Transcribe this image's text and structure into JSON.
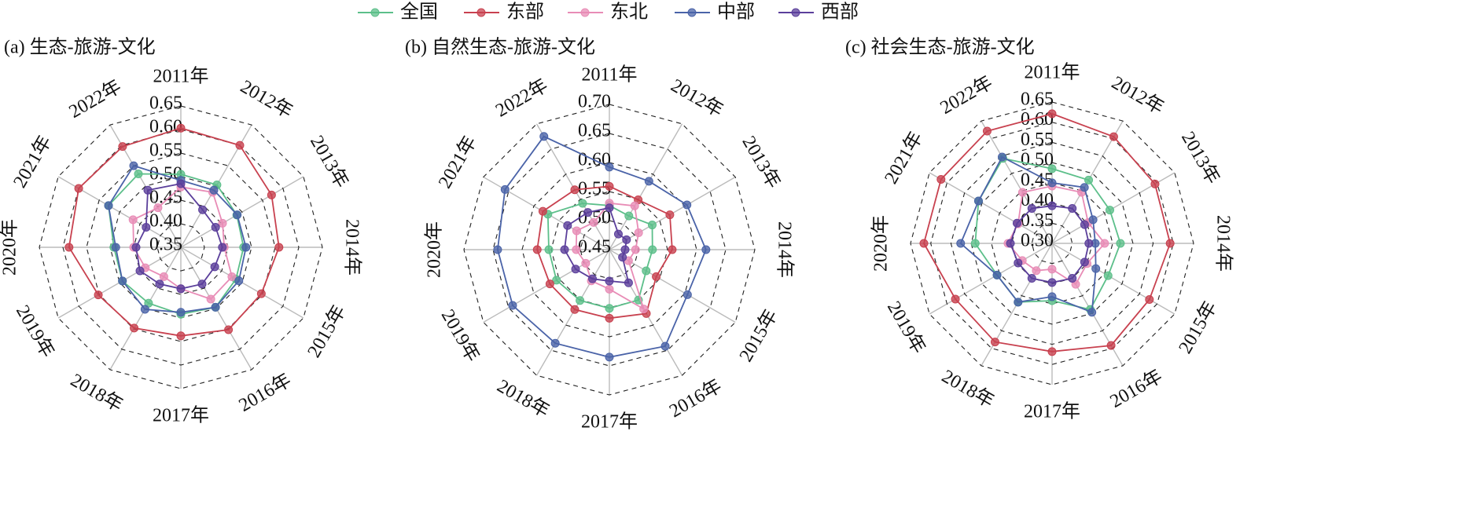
{
  "chart_data": [
    {
      "type": "radar",
      "title": "(a) 生态-旅游-文化",
      "categories": [
        "2011年",
        "2012年",
        "2013年",
        "2014年",
        "2015年",
        "2016年",
        "2017年",
        "2018年",
        "2019年",
        "2020年",
        "2021年",
        "2022年"
      ],
      "ylim": [
        0.35,
        0.65
      ],
      "yticks": [
        0.35,
        {
          "value": 0.4,
          "label": "0.40"
        },
        0.45,
        {
          "value": 0.5,
          "label": "0.50"
        },
        0.55,
        {
          "value": 0.6,
          "label": "0.60"
        },
        0.65
      ],
      "series": [
        {
          "name": "全国",
          "color": "#5cbf8a",
          "values": [
            0.505,
            0.503,
            0.487,
            0.483,
            0.485,
            0.497,
            0.492,
            0.487,
            0.493,
            0.492,
            0.527,
            0.53
          ]
        },
        {
          "name": "东部",
          "color": "#c8414f",
          "values": [
            0.603,
            0.6,
            0.572,
            0.558,
            0.547,
            0.552,
            0.538,
            0.548,
            0.552,
            0.587,
            0.6,
            0.597
          ]
        },
        {
          "name": "东北",
          "color": "#e88cb6",
          "values": [
            0.478,
            0.485,
            0.452,
            0.442,
            0.475,
            0.477,
            0.438,
            0.422,
            0.437,
            0.45,
            0.467,
            0.447
          ]
        },
        {
          "name": "中部",
          "color": "#4a63a8",
          "values": [
            0.492,
            0.49,
            0.488,
            0.488,
            0.492,
            0.497,
            0.488,
            0.502,
            0.493,
            0.488,
            0.527,
            0.55
          ]
        },
        {
          "name": "西部",
          "color": "#5b3f9b",
          "values": [
            0.485,
            0.442,
            0.435,
            0.438,
            0.433,
            0.44,
            0.438,
            0.44,
            0.45,
            0.445,
            0.435,
            0.49
          ]
        }
      ]
    },
    {
      "type": "radar",
      "title": "(b) 自然生态-旅游-文化",
      "categories": [
        "2011年",
        "2012年",
        "2013年",
        "2014年",
        "2015年",
        "2016年",
        "2017年",
        "2018年",
        "2019年",
        "2020年",
        "2021年",
        "2022年"
      ],
      "ylim": [
        0.45,
        0.7
      ],
      "yticks": [
        0.45,
        {
          "value": 0.5,
          "label": "0.50"
        },
        0.55,
        {
          "value": 0.6,
          "label": "0.60"
        },
        0.65,
        {
          "value": 0.7,
          "label": "0.70"
        }
      ],
      "series": [
        {
          "name": "全国",
          "color": "#5cbf8a",
          "values": [
            0.526,
            0.517,
            0.535,
            0.524,
            0.523,
            0.55,
            0.551,
            0.551,
            0.555,
            0.554,
            0.572,
            0.542
          ]
        },
        {
          "name": "东部",
          "color": "#c8414f",
          "values": [
            0.559,
            0.549,
            0.57,
            0.558,
            0.543,
            0.577,
            0.568,
            0.569,
            0.568,
            0.574,
            0.582,
            0.569
          ]
        },
        {
          "name": "东北",
          "color": "#e88cb6",
          "values": [
            0.53,
            0.537,
            0.508,
            0.495,
            0.488,
            0.568,
            0.518,
            0.512,
            0.497,
            0.507,
            0.515,
            0.504
          ]
        },
        {
          "name": "中部",
          "color": "#4a63a8",
          "values": [
            0.592,
            0.586,
            0.604,
            0.616,
            0.605,
            0.642,
            0.635,
            0.636,
            0.642,
            0.642,
            0.657,
            0.675
          ]
        },
        {
          "name": "西部",
          "color": "#5b3f9b",
          "values": [
            0.522,
            0.481,
            0.484,
            0.477,
            0.476,
            0.516,
            0.504,
            0.508,
            0.517,
            0.527,
            0.533,
            0.524
          ]
        }
      ]
    },
    {
      "type": "radar",
      "title": "(c) 社会生态-旅游-文化",
      "categories": [
        "2011年",
        "2012年",
        "2013年",
        "2014年",
        "2015年",
        "2016年",
        "2017年",
        "2018年",
        "2019年",
        "2020年",
        "2021年",
        "2022年"
      ],
      "ylim": [
        0.3,
        0.65
      ],
      "yticks": [
        {
          "value": 0.3,
          "label": "0.30"
        },
        0.35,
        {
          "value": 0.4,
          "label": "0.40"
        },
        0.45,
        {
          "value": 0.5,
          "label": "0.50"
        },
        0.55,
        {
          "value": 0.6,
          "label": "0.60"
        },
        0.65
      ],
      "series": [
        {
          "name": "全国",
          "color": "#5cbf8a",
          "values": [
            0.485,
            0.481,
            0.465,
            0.469,
            0.46,
            0.489,
            0.442,
            0.468,
            0.457,
            0.49,
            0.51,
            0.543
          ]
        },
        {
          "name": "东部",
          "color": "#c8414f",
          "values": [
            0.621,
            0.605,
            0.594,
            0.592,
            0.578,
            0.592,
            0.568,
            0.582,
            0.576,
            0.617,
            0.617,
            0.621
          ]
        },
        {
          "name": "东北",
          "color": "#e88cb6",
          "values": [
            0.442,
            0.446,
            0.403,
            0.43,
            0.4,
            0.417,
            0.364,
            0.378,
            0.385,
            0.409,
            0.397,
            0.446
          ]
        },
        {
          "name": "中部",
          "color": "#4a63a8",
          "values": [
            0.45,
            0.46,
            0.417,
            0.407,
            0.425,
            0.497,
            0.432,
            0.468,
            0.457,
            0.526,
            0.51,
            0.547
          ]
        },
        {
          "name": "西部",
          "color": "#5b3f9b",
          "values": [
            0.393,
            0.4,
            0.393,
            0.391,
            0.393,
            0.4,
            0.397,
            0.4,
            0.397,
            0.403,
            0.4,
            0.4
          ]
        }
      ]
    }
  ]
}
